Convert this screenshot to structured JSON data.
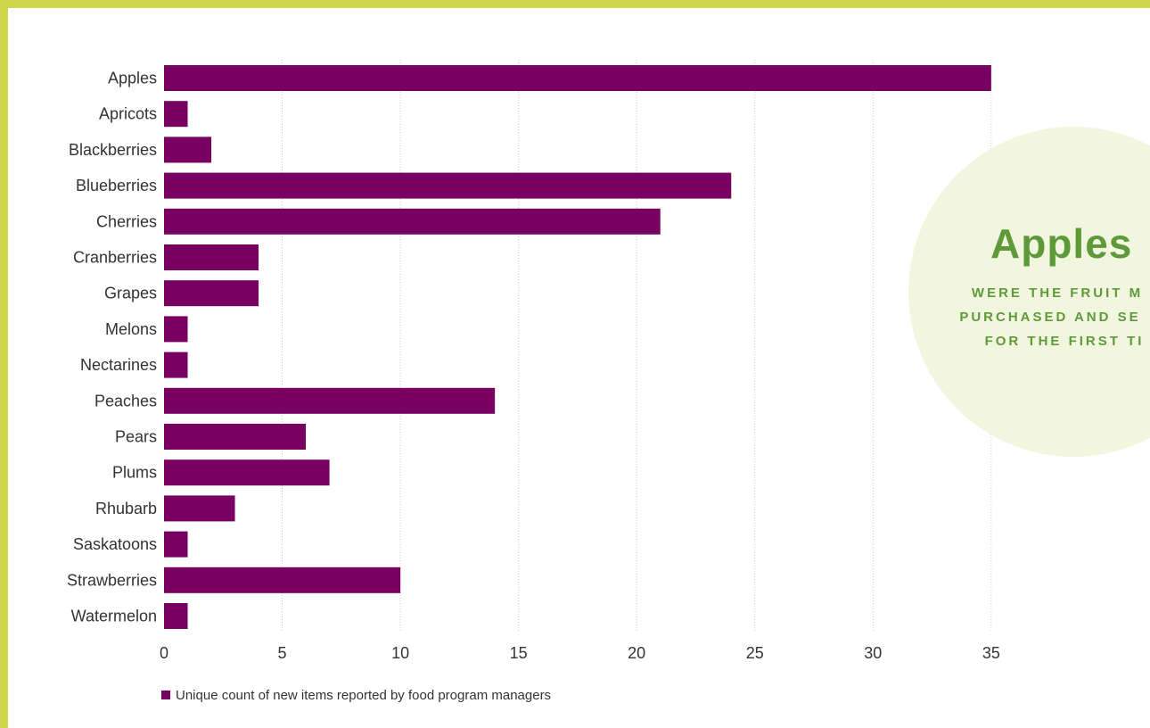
{
  "chart_data": {
    "type": "bar",
    "orientation": "horizontal",
    "categories": [
      "Apples",
      "Apricots",
      "Blackberries",
      "Blueberries",
      "Cherries",
      "Cranberries",
      "Grapes",
      "Melons",
      "Nectarines",
      "Peaches",
      "Pears",
      "Plums",
      "Rhubarb",
      "Saskatoons",
      "Strawberries",
      "Watermelon"
    ],
    "series": [
      {
        "name": "Unique count of new items reported by food program managers",
        "values": [
          35,
          1,
          2,
          24,
          21,
          4,
          4,
          1,
          1,
          14,
          6,
          7,
          3,
          1,
          10,
          1
        ]
      }
    ],
    "xticks": [
      0,
      5,
      10,
      15,
      20,
      25,
      30,
      35
    ],
    "xlim": [
      0,
      35
    ],
    "grid": "vertical dotted",
    "legend_placement": "bottom-left",
    "bar_color": "#770060",
    "title": "",
    "xlabel": "",
    "ylabel": ""
  },
  "callout": {
    "title": "Apples",
    "lines": [
      "WERE THE FRUIT M",
      "PURCHASED AND SE",
      "FOR THE FIRST TI"
    ]
  },
  "colors": {
    "bar": "#770060",
    "border": "#cdd64a",
    "callout_bg": "#f3f6df",
    "callout_text": "#5e9a3a"
  }
}
